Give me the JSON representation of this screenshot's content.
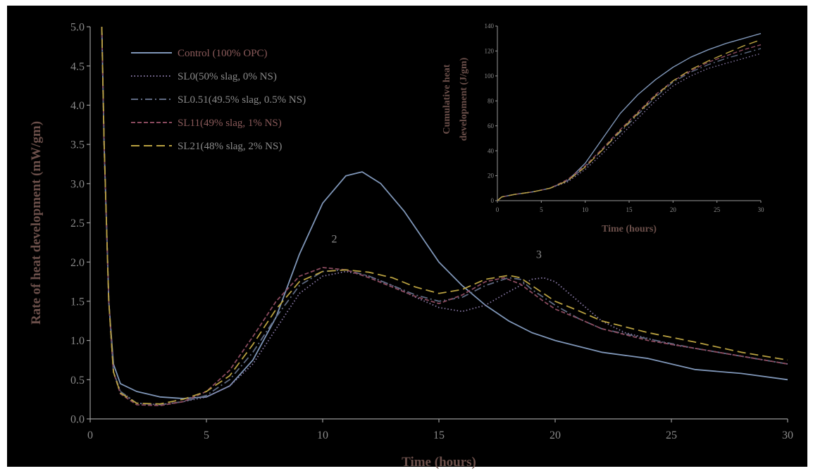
{
  "chart_data": [
    {
      "type": "line",
      "xlabel": "Time (hours)",
      "ylabel": "Rate of heat development (mW/gm)",
      "xlim": [
        0,
        30
      ],
      "ylim": [
        0,
        5.0
      ],
      "x_ticks": [
        "0",
        "5",
        "10",
        "15",
        "20",
        "25",
        "30"
      ],
      "y_ticks": [
        "0.0",
        "0.5",
        "1.0",
        "1.5",
        "2.0",
        "2.5",
        "3.0",
        "3.5",
        "4.0",
        "4.5",
        "5.0"
      ],
      "legend_position": "top-left",
      "grid": false,
      "annotations": [
        {
          "text": "2",
          "x": 10.5,
          "y": 2.25
        },
        {
          "text": "3",
          "x": 19.3,
          "y": 2.05
        }
      ],
      "series": [
        {
          "name": "Control (100% OPC)",
          "color": "#7f96b8",
          "dash": "solid",
          "points": [
            [
              0.5,
              5.0
            ],
            [
              0.6,
              3.5
            ],
            [
              0.8,
              1.5
            ],
            [
              1.0,
              0.7
            ],
            [
              1.3,
              0.45
            ],
            [
              2,
              0.35
            ],
            [
              3,
              0.28
            ],
            [
              4,
              0.26
            ],
            [
              5,
              0.28
            ],
            [
              6,
              0.42
            ],
            [
              7,
              0.75
            ],
            [
              8,
              1.3
            ],
            [
              9,
              2.1
            ],
            [
              10,
              2.75
            ],
            [
              11,
              3.1
            ],
            [
              11.7,
              3.15
            ],
            [
              12.5,
              3.0
            ],
            [
              13.5,
              2.65
            ],
            [
              15,
              2.0
            ],
            [
              16,
              1.7
            ],
            [
              17,
              1.45
            ],
            [
              18,
              1.25
            ],
            [
              19,
              1.1
            ],
            [
              20,
              1.0
            ],
            [
              22,
              0.85
            ],
            [
              24,
              0.77
            ],
            [
              25,
              0.7
            ],
            [
              26,
              0.63
            ],
            [
              28,
              0.58
            ],
            [
              30,
              0.5
            ]
          ]
        },
        {
          "name": "SL0(50% slag, 0% NS)",
          "color": "#8a7aa8",
          "dash": "dotted",
          "points": [
            [
              0.5,
              5.0
            ],
            [
              0.6,
              3.5
            ],
            [
              0.8,
              1.5
            ],
            [
              1.0,
              0.6
            ],
            [
              1.3,
              0.35
            ],
            [
              2,
              0.2
            ],
            [
              3,
              0.18
            ],
            [
              4,
              0.22
            ],
            [
              5,
              0.28
            ],
            [
              6,
              0.42
            ],
            [
              7,
              0.7
            ],
            [
              8,
              1.15
            ],
            [
              9,
              1.6
            ],
            [
              10,
              1.82
            ],
            [
              11,
              1.88
            ],
            [
              12,
              1.82
            ],
            [
              13,
              1.7
            ],
            [
              14,
              1.55
            ],
            [
              15,
              1.42
            ],
            [
              16,
              1.37
            ],
            [
              17,
              1.45
            ],
            [
              18,
              1.62
            ],
            [
              19,
              1.78
            ],
            [
              19.5,
              1.8
            ],
            [
              20,
              1.75
            ],
            [
              21,
              1.5
            ],
            [
              22,
              1.25
            ],
            [
              23,
              1.1
            ],
            [
              25,
              0.95
            ],
            [
              27,
              0.85
            ],
            [
              30,
              0.7
            ]
          ]
        },
        {
          "name": "SL0.51(49.5% slag, 0.5% NS)",
          "color": "#5e6a82",
          "dash": "dashdot",
          "points": [
            [
              0.5,
              5.0
            ],
            [
              0.6,
              3.5
            ],
            [
              0.8,
              1.5
            ],
            [
              1.0,
              0.6
            ],
            [
              1.3,
              0.35
            ],
            [
              2,
              0.2
            ],
            [
              3,
              0.18
            ],
            [
              4,
              0.22
            ],
            [
              5,
              0.3
            ],
            [
              6,
              0.5
            ],
            [
              7,
              0.85
            ],
            [
              8,
              1.3
            ],
            [
              9,
              1.7
            ],
            [
              10,
              1.88
            ],
            [
              11,
              1.9
            ],
            [
              12,
              1.82
            ],
            [
              13,
              1.7
            ],
            [
              14,
              1.58
            ],
            [
              15,
              1.5
            ],
            [
              16,
              1.55
            ],
            [
              17,
              1.7
            ],
            [
              18,
              1.8
            ],
            [
              18.5,
              1.78
            ],
            [
              19,
              1.65
            ],
            [
              20,
              1.45
            ],
            [
              21,
              1.28
            ],
            [
              22,
              1.15
            ],
            [
              24,
              1.02
            ],
            [
              26,
              0.9
            ],
            [
              28,
              0.8
            ],
            [
              30,
              0.7
            ]
          ]
        },
        {
          "name": "SL11(49% slag, 1% NS)",
          "color": "#8a4a5e",
          "dash": "dashed",
          "points": [
            [
              0.5,
              5.0
            ],
            [
              0.6,
              3.5
            ],
            [
              0.8,
              1.5
            ],
            [
              1.0,
              0.6
            ],
            [
              1.3,
              0.32
            ],
            [
              2,
              0.18
            ],
            [
              3,
              0.17
            ],
            [
              4,
              0.22
            ],
            [
              5,
              0.35
            ],
            [
              6,
              0.62
            ],
            [
              7,
              1.05
            ],
            [
              8,
              1.5
            ],
            [
              9,
              1.82
            ],
            [
              10,
              1.93
            ],
            [
              11,
              1.9
            ],
            [
              12,
              1.8
            ],
            [
              13,
              1.68
            ],
            [
              14,
              1.56
            ],
            [
              15,
              1.47
            ],
            [
              16,
              1.58
            ],
            [
              17,
              1.75
            ],
            [
              17.8,
              1.8
            ],
            [
              18.5,
              1.72
            ],
            [
              19.5,
              1.5
            ],
            [
              20,
              1.4
            ],
            [
              21,
              1.28
            ],
            [
              22,
              1.15
            ],
            [
              24,
              1.0
            ],
            [
              26,
              0.9
            ],
            [
              28,
              0.8
            ],
            [
              30,
              0.7
            ]
          ]
        },
        {
          "name": "SL21(48% slag, 2% NS)",
          "color": "#b8a040",
          "dash": "longdash",
          "points": [
            [
              0.5,
              5.0
            ],
            [
              0.6,
              3.5
            ],
            [
              0.8,
              1.5
            ],
            [
              1.0,
              0.6
            ],
            [
              1.3,
              0.33
            ],
            [
              2,
              0.2
            ],
            [
              3,
              0.19
            ],
            [
              4,
              0.25
            ],
            [
              5,
              0.35
            ],
            [
              6,
              0.55
            ],
            [
              7,
              0.95
            ],
            [
              8,
              1.4
            ],
            [
              9,
              1.75
            ],
            [
              10,
              1.88
            ],
            [
              11,
              1.9
            ],
            [
              12,
              1.87
            ],
            [
              13,
              1.8
            ],
            [
              14,
              1.68
            ],
            [
              15,
              1.6
            ],
            [
              16,
              1.65
            ],
            [
              17,
              1.78
            ],
            [
              18,
              1.83
            ],
            [
              18.5,
              1.8
            ],
            [
              19.5,
              1.6
            ],
            [
              20,
              1.5
            ],
            [
              21,
              1.38
            ],
            [
              22,
              1.25
            ],
            [
              24,
              1.1
            ],
            [
              26,
              0.98
            ],
            [
              28,
              0.85
            ],
            [
              30,
              0.75
            ]
          ]
        }
      ]
    },
    {
      "type": "line",
      "xlabel": "Time (hours)",
      "ylabel": "Cumulative heat development (J/gm)",
      "xlim": [
        0,
        30
      ],
      "ylim": [
        0,
        140
      ],
      "x_ticks": [
        "0",
        "5",
        "10",
        "15",
        "20",
        "25",
        "30"
      ],
      "y_ticks": [
        "0",
        "20",
        "40",
        "60",
        "80",
        "100",
        "120",
        "140"
      ],
      "grid": false,
      "series": [
        {
          "name": "Control (100% OPC)",
          "color": "#7f96b8",
          "dash": "solid",
          "points": [
            [
              0,
              0
            ],
            [
              0.5,
              3
            ],
            [
              2,
              5
            ],
            [
              4,
              7
            ],
            [
              6,
              10
            ],
            [
              8,
              16
            ],
            [
              10,
              30
            ],
            [
              12,
              50
            ],
            [
              14,
              70
            ],
            [
              16,
              85
            ],
            [
              18,
              97
            ],
            [
              20,
              107
            ],
            [
              22,
              115
            ],
            [
              24,
              121
            ],
            [
              26,
              126
            ],
            [
              28,
              130
            ],
            [
              30,
              134
            ]
          ]
        },
        {
          "name": "SL0(50% slag, 0% NS)",
          "color": "#8a7aa8",
          "dash": "dotted",
          "points": [
            [
              0,
              0
            ],
            [
              0.5,
              3
            ],
            [
              2,
              5
            ],
            [
              4,
              7
            ],
            [
              6,
              10
            ],
            [
              8,
              15
            ],
            [
              10,
              25
            ],
            [
              12,
              38
            ],
            [
              14,
              52
            ],
            [
              16,
              66
            ],
            [
              18,
              80
            ],
            [
              20,
              92
            ],
            [
              22,
              100
            ],
            [
              24,
              106
            ],
            [
              26,
              110
            ],
            [
              28,
              114
            ],
            [
              30,
              118
            ]
          ]
        },
        {
          "name": "SL0.51(49.5% slag, 0.5% NS)",
          "color": "#5e6a82",
          "dash": "dashdot",
          "points": [
            [
              0,
              0
            ],
            [
              0.5,
              3
            ],
            [
              2,
              5
            ],
            [
              4,
              7
            ],
            [
              6,
              10
            ],
            [
              8,
              16
            ],
            [
              10,
              27
            ],
            [
              12,
              41
            ],
            [
              14,
              55
            ],
            [
              16,
              69
            ],
            [
              18,
              83
            ],
            [
              20,
              95
            ],
            [
              22,
              103
            ],
            [
              24,
              109
            ],
            [
              26,
              114
            ],
            [
              28,
              118
            ],
            [
              30,
              122
            ]
          ]
        },
        {
          "name": "SL11(49% slag, 1% NS)",
          "color": "#8a4a5e",
          "dash": "dashed",
          "points": [
            [
              0,
              0
            ],
            [
              0.5,
              3
            ],
            [
              2,
              5
            ],
            [
              4,
              7
            ],
            [
              6,
              10
            ],
            [
              8,
              17
            ],
            [
              10,
              28
            ],
            [
              12,
              42
            ],
            [
              14,
              57
            ],
            [
              16,
              71
            ],
            [
              18,
              85
            ],
            [
              20,
              96
            ],
            [
              22,
              104
            ],
            [
              24,
              111
            ],
            [
              26,
              116
            ],
            [
              28,
              121
            ],
            [
              30,
              125
            ]
          ]
        },
        {
          "name": "SL21(48% slag, 2% NS)",
          "color": "#b8a040",
          "dash": "longdash",
          "points": [
            [
              0,
              0
            ],
            [
              0.5,
              3
            ],
            [
              2,
              5
            ],
            [
              4,
              7
            ],
            [
              6,
              10
            ],
            [
              8,
              16
            ],
            [
              10,
              27
            ],
            [
              12,
              41
            ],
            [
              14,
              56
            ],
            [
              16,
              70
            ],
            [
              18,
              84
            ],
            [
              20,
              96
            ],
            [
              22,
              105
            ],
            [
              24,
              112
            ],
            [
              26,
              118
            ],
            [
              28,
              124
            ],
            [
              30,
              129
            ]
          ]
        }
      ]
    }
  ]
}
